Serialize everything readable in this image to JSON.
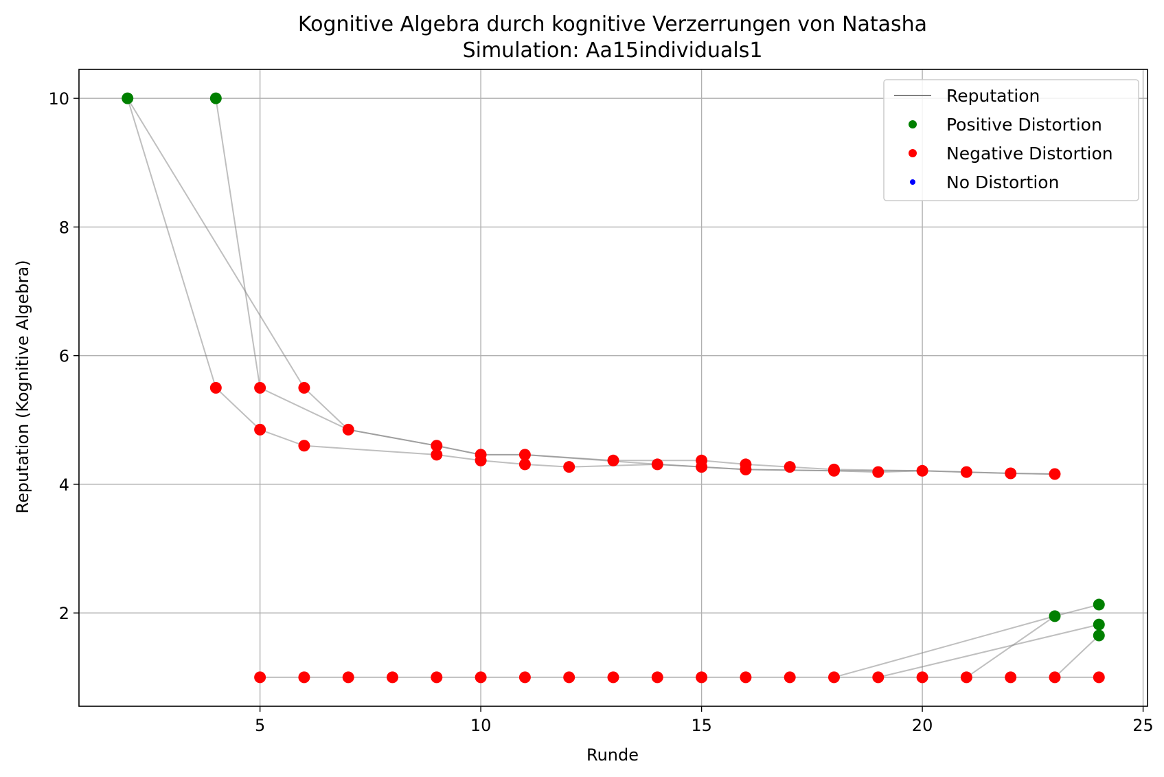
{
  "chart_data": {
    "type": "scatter",
    "title": "Kognitive Algebra durch kognitive Verzerrungen von Natasha",
    "subtitle": "Simulation: Aa15individuals1",
    "xlabel": "Runde",
    "ylabel": "Reputation (Kognitive Algebra)",
    "xlim": [
      0.9,
      25.1
    ],
    "ylim": [
      0.55,
      10.45
    ],
    "xticks": [
      5,
      10,
      15,
      20,
      25
    ],
    "yticks": [
      2,
      4,
      6,
      8,
      10
    ],
    "grid": true,
    "legend_position": "top-right",
    "legend": [
      "Reputation",
      "Positive Distortion",
      "Negative Distortion",
      "No Distortion"
    ],
    "colors": {
      "reputation": "#808080",
      "positive": "#008000",
      "negative": "#ff0000",
      "none": "#0000ff",
      "grid": "#b0b0b0"
    },
    "series": [
      {
        "points": [
          [
            2,
            10
          ],
          [
            4,
            5.5
          ],
          [
            5,
            4.85
          ],
          [
            6,
            4.6
          ],
          [
            9,
            4.46
          ],
          [
            10,
            4.37
          ],
          [
            11,
            4.31
          ],
          [
            12,
            4.27
          ],
          [
            14,
            4.31
          ],
          [
            15,
            4.27
          ],
          [
            16,
            4.23
          ],
          [
            18,
            4.21
          ],
          [
            19,
            4.19
          ],
          [
            20,
            4.21
          ],
          [
            21,
            4.19
          ],
          [
            22,
            4.17
          ],
          [
            23,
            4.16
          ]
        ]
      },
      {
        "points": [
          [
            2,
            10
          ],
          [
            6,
            5.5
          ],
          [
            7,
            4.85
          ],
          [
            9,
            4.6
          ],
          [
            10,
            4.46
          ],
          [
            11,
            4.46
          ],
          [
            13,
            4.37
          ],
          [
            15,
            4.37
          ],
          [
            16,
            4.31
          ],
          [
            17,
            4.27
          ],
          [
            18,
            4.23
          ],
          [
            20,
            4.21
          ],
          [
            21,
            4.19
          ],
          [
            22,
            4.17
          ],
          [
            23,
            4.16
          ]
        ]
      },
      {
        "points": [
          [
            4,
            10
          ],
          [
            5,
            5.5
          ],
          [
            7,
            4.85
          ],
          [
            9,
            4.6
          ],
          [
            10,
            4.46
          ],
          [
            11,
            4.46
          ],
          [
            14,
            4.31
          ],
          [
            15,
            4.27
          ],
          [
            16,
            4.23
          ],
          [
            18,
            4.21
          ],
          [
            20,
            4.21
          ]
        ]
      },
      {
        "points": [
          [
            5,
            1
          ],
          [
            6,
            1
          ],
          [
            7,
            1
          ],
          [
            8,
            1
          ],
          [
            9,
            1
          ],
          [
            10,
            1
          ],
          [
            11,
            1
          ],
          [
            12,
            1
          ],
          [
            13,
            1
          ],
          [
            14,
            1
          ],
          [
            15,
            1
          ],
          [
            16,
            1
          ],
          [
            17,
            1
          ],
          [
            18,
            1
          ],
          [
            19,
            1
          ],
          [
            20,
            1
          ],
          [
            21,
            1
          ],
          [
            22,
            1
          ],
          [
            23,
            1
          ],
          [
            24,
            1
          ]
        ]
      },
      {
        "points": [
          [
            18,
            1
          ],
          [
            23,
            1.95
          ],
          [
            24,
            2.13
          ]
        ]
      },
      {
        "points": [
          [
            19,
            1
          ],
          [
            24,
            1.82
          ]
        ]
      },
      {
        "points": [
          [
            21,
            1
          ],
          [
            23,
            1.95
          ]
        ]
      },
      {
        "points": [
          [
            23,
            1
          ],
          [
            24,
            1.65
          ]
        ]
      }
    ],
    "positive_points": [
      [
        2,
        10
      ],
      [
        4,
        10
      ],
      [
        23,
        1.95
      ],
      [
        24,
        2.13
      ],
      [
        24,
        1.82
      ],
      [
        24,
        1.65
      ]
    ],
    "negative_points": [
      [
        4,
        5.5
      ],
      [
        5,
        5.5
      ],
      [
        6,
        5.5
      ],
      [
        5,
        4.85
      ],
      [
        7,
        4.85
      ],
      [
        6,
        4.6
      ],
      [
        9,
        4.6
      ],
      [
        9,
        4.46
      ],
      [
        10,
        4.46
      ],
      [
        10,
        4.37
      ],
      [
        11,
        4.46
      ],
      [
        11,
        4.31
      ],
      [
        12,
        4.27
      ],
      [
        13,
        4.37
      ],
      [
        14,
        4.31
      ],
      [
        15,
        4.37
      ],
      [
        15,
        4.27
      ],
      [
        16,
        4.31
      ],
      [
        16,
        4.23
      ],
      [
        17,
        4.27
      ],
      [
        18,
        4.23
      ],
      [
        18,
        4.21
      ],
      [
        19,
        4.19
      ],
      [
        20,
        4.21
      ],
      [
        21,
        4.19
      ],
      [
        22,
        4.17
      ],
      [
        23,
        4.16
      ],
      [
        5,
        1
      ],
      [
        6,
        1
      ],
      [
        7,
        1
      ],
      [
        8,
        1
      ],
      [
        9,
        1
      ],
      [
        10,
        1
      ],
      [
        11,
        1
      ],
      [
        12,
        1
      ],
      [
        13,
        1
      ],
      [
        14,
        1
      ],
      [
        15,
        1
      ],
      [
        16,
        1
      ],
      [
        17,
        1
      ],
      [
        18,
        1
      ],
      [
        19,
        1
      ],
      [
        20,
        1
      ],
      [
        21,
        1
      ],
      [
        22,
        1
      ],
      [
        23,
        1
      ],
      [
        24,
        1
      ]
    ],
    "no_distortion_points": []
  }
}
